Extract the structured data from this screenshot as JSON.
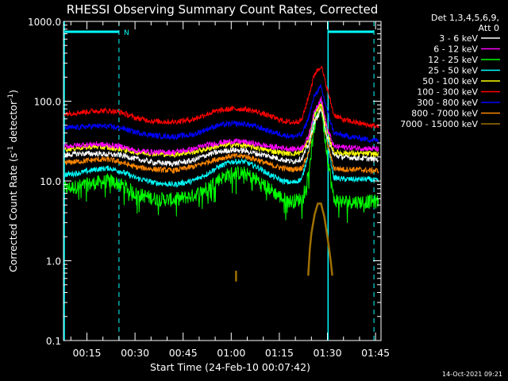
{
  "chart_data": {
    "type": "line",
    "title": "RHESSI Observing Summary Count Rates, Corrected",
    "xlabel": "Start Time (24-Feb-10 00:07:42)",
    "ylabel_main": "Corrected Count Rate (s",
    "ylabel_sup1": "-1",
    "ylabel_mid": " detector",
    "ylabel_sup2": "-1",
    "ylabel_end": ")",
    "yscale": "log",
    "ylim": [
      0.1,
      1000
    ],
    "xlim_minutes": [
      7.7,
      106.7
    ],
    "x_ticks": [
      {
        "label": "00:15",
        "minute": 15
      },
      {
        "label": "00:30",
        "minute": 30
      },
      {
        "label": "00:45",
        "minute": 45
      },
      {
        "label": "01:00",
        "minute": 60
      },
      {
        "label": "01:15",
        "minute": 75
      },
      {
        "label": "01:30",
        "minute": 90
      },
      {
        "label": "01:45",
        "minute": 105
      }
    ],
    "y_ticks": [
      {
        "label": "1000.0",
        "value": 1000
      },
      {
        "label": "100.0",
        "value": 100
      },
      {
        "label": "10.0",
        "value": 10
      },
      {
        "label": "1.0",
        "value": 1
      },
      {
        "label": "0.1",
        "value": 0.1
      }
    ],
    "legend": {
      "placement": "right",
      "header_1": "Det 1,3,4,5,6,9,",
      "header_2": "Att 0"
    },
    "series": [
      {
        "name": "3 - 6 keV",
        "color": "#ffffff",
        "x": [
          8,
          12,
          18,
          22,
          26,
          30,
          36,
          42,
          48,
          52,
          56,
          60,
          64,
          68,
          72,
          76,
          79,
          82,
          84,
          86,
          88,
          90,
          92,
          95,
          99,
          103,
          106
        ],
        "y": [
          21,
          22,
          22,
          21.5,
          21,
          19,
          17,
          16.5,
          18,
          21,
          23,
          24.5,
          24,
          22,
          20.5,
          18.5,
          17.5,
          19,
          28,
          55,
          80,
          35,
          21,
          20,
          19.5,
          19,
          18.5
        ]
      },
      {
        "name": "6 - 12 keV",
        "color": "#ff00ff",
        "x": [
          8,
          12,
          18,
          22,
          26,
          30,
          36,
          42,
          48,
          52,
          56,
          60,
          64,
          68,
          72,
          76,
          79,
          82,
          84,
          86,
          88,
          90,
          92,
          95,
          99,
          103,
          106
        ],
        "y": [
          27,
          28,
          29,
          28,
          27,
          24,
          23,
          23,
          25,
          28,
          30,
          31.5,
          31,
          29,
          27,
          26,
          25,
          26,
          35,
          75,
          110,
          45,
          27,
          26.5,
          26,
          25.5,
          25
        ]
      },
      {
        "name": "12 - 25 keV",
        "color": "#00ff00",
        "x": [
          8,
          12,
          18,
          22,
          26,
          30,
          36,
          42,
          48,
          52,
          56,
          60,
          64,
          68,
          72,
          76,
          79,
          82,
          84,
          86,
          88,
          90,
          92,
          95,
          99,
          103,
          106
        ],
        "y": [
          8,
          8.5,
          9.5,
          10,
          9,
          7,
          6,
          5.8,
          6.5,
          8,
          10.5,
          12.5,
          12.5,
          10.5,
          8,
          6,
          5.5,
          6,
          12,
          50,
          90,
          20,
          5.8,
          5.5,
          5.5,
          5.5,
          5.5
        ]
      },
      {
        "name": "25 - 50 keV",
        "color": "#00ffff",
        "x": [
          8,
          12,
          18,
          22,
          26,
          30,
          36,
          42,
          48,
          52,
          56,
          60,
          64,
          68,
          72,
          76,
          79,
          82,
          84,
          86,
          88,
          90,
          92,
          95,
          99,
          103,
          106
        ],
        "y": [
          12,
          12.5,
          14,
          14.5,
          13,
          11,
          9.5,
          9,
          10,
          12,
          15,
          17.5,
          17.5,
          15,
          12,
          10,
          9.5,
          10.5,
          22,
          70,
          100,
          30,
          11,
          10.5,
          10.5,
          10.5,
          10
        ]
      },
      {
        "name": "50 - 100 keV",
        "color": "#ffff00",
        "x": [
          8,
          12,
          18,
          22,
          26,
          30,
          36,
          42,
          48,
          52,
          56,
          60,
          64,
          68,
          72,
          76,
          79,
          82,
          84,
          86,
          88,
          90,
          92,
          95,
          99,
          103,
          106
        ],
        "y": [
          25,
          26,
          27,
          26,
          25,
          23,
          22,
          21.5,
          23,
          25,
          27.5,
          28.5,
          28,
          26,
          24,
          22.5,
          22,
          23,
          32,
          70,
          95,
          40,
          23,
          22.5,
          22,
          22,
          21.5
        ]
      },
      {
        "name": "100 - 300 keV",
        "color": "#ff0000",
        "x": [
          8,
          12,
          18,
          22,
          26,
          30,
          36,
          42,
          48,
          52,
          56,
          60,
          64,
          68,
          72,
          76,
          79,
          82,
          84,
          86,
          88,
          90,
          92,
          95,
          99,
          103,
          106
        ],
        "y": [
          70,
          72,
          76,
          76,
          72,
          62,
          56,
          55,
          59,
          68,
          76,
          80,
          80,
          74,
          65,
          57,
          54,
          58,
          110,
          220,
          280,
          140,
          68,
          58,
          54,
          50,
          48
        ]
      },
      {
        "name": "300 - 800 keV",
        "color": "#0000ff",
        "x": [
          8,
          12,
          18,
          22,
          26,
          30,
          36,
          42,
          48,
          52,
          56,
          60,
          64,
          68,
          72,
          76,
          79,
          82,
          84,
          86,
          88,
          90,
          92,
          95,
          99,
          103,
          106
        ],
        "y": [
          46,
          47,
          49,
          48,
          46,
          41,
          37,
          36,
          38,
          44,
          50,
          52,
          52,
          48,
          42,
          38,
          36,
          38,
          60,
          120,
          150,
          75,
          40,
          37,
          35,
          33,
          32
        ]
      },
      {
        "name": "800 - 7000 keV",
        "color": "#ff8800",
        "x": [
          8,
          12,
          18,
          22,
          26,
          30,
          36,
          42,
          48,
          52,
          56,
          60,
          64,
          68,
          72,
          76,
          79,
          82,
          84,
          86,
          88,
          90,
          92,
          95,
          99,
          103,
          106
        ],
        "y": [
          17,
          17.5,
          18.5,
          18.5,
          17,
          15,
          14,
          13.5,
          15,
          17,
          19,
          20.5,
          20.5,
          18.5,
          16,
          14.5,
          14,
          14.5,
          22,
          55,
          90,
          30,
          14.5,
          14,
          14,
          13.5,
          13.5
        ]
      },
      {
        "name": "7000 - 15000 keV",
        "color": "#a07000",
        "x": [
          61.5,
          61.5,
          84,
          84.5,
          85,
          86,
          87,
          88,
          89,
          90,
          91,
          91.5
        ],
        "y": [
          0.55,
          0.75,
          0.65,
          1.4,
          2.2,
          3.8,
          5.2,
          5.2,
          3.6,
          2.0,
          1.0,
          0.65
        ]
      }
    ],
    "annotations": [
      {
        "text": "N",
        "color": "#00ffff",
        "minute": 26
      }
    ]
  },
  "footer": {
    "timestamp": "14-Oct-2021 09:21"
  }
}
